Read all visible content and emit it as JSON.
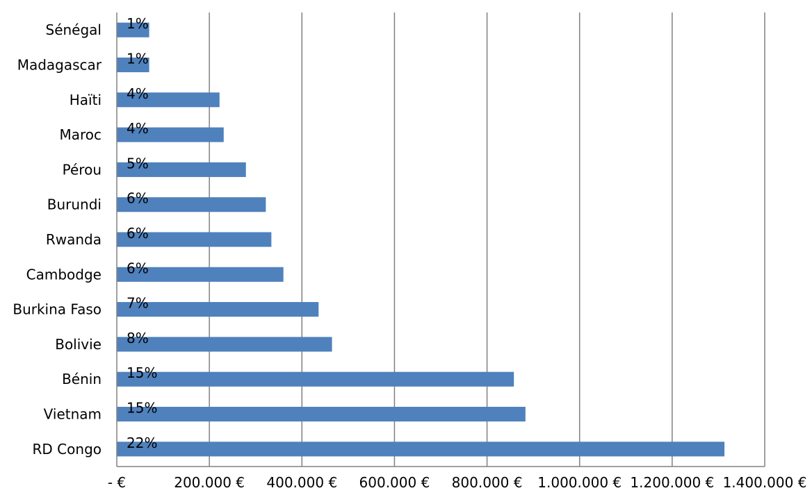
{
  "chart_data": {
    "type": "bar",
    "orientation": "horizontal",
    "categories": [
      "Sénégal",
      "Madagascar",
      "Haïti",
      "Maroc",
      "Pérou",
      "Burundi",
      "Rwanda",
      "Cambodge",
      "Burkina Faso",
      "Bolivie",
      "Bénin",
      "Vietnam",
      "RD Congo"
    ],
    "values": [
      70000,
      70000,
      222000,
      231000,
      279000,
      322000,
      334000,
      360000,
      436000,
      465000,
      858000,
      883000,
      1313000
    ],
    "data_labels": [
      "1%",
      "1%",
      "4%",
      "4%",
      "5%",
      "6%",
      "6%",
      "6%",
      "7%",
      "8%",
      "15%",
      "15%",
      "22%"
    ],
    "x_ticks": [
      0,
      200000,
      400000,
      600000,
      800000,
      1000000,
      1200000,
      1400000
    ],
    "x_tick_labels": [
      "-   €",
      "200.000 €",
      "400.000 €",
      "600.000 €",
      "800.000 €",
      "1.000.000 €",
      "1.200.000 €",
      "1.400.000 €"
    ],
    "xlim": [
      0,
      1400000
    ],
    "grid": true,
    "bar_color": "#4F81BD",
    "grid_color": "#808080",
    "title": "",
    "xlabel": "",
    "ylabel": ""
  }
}
